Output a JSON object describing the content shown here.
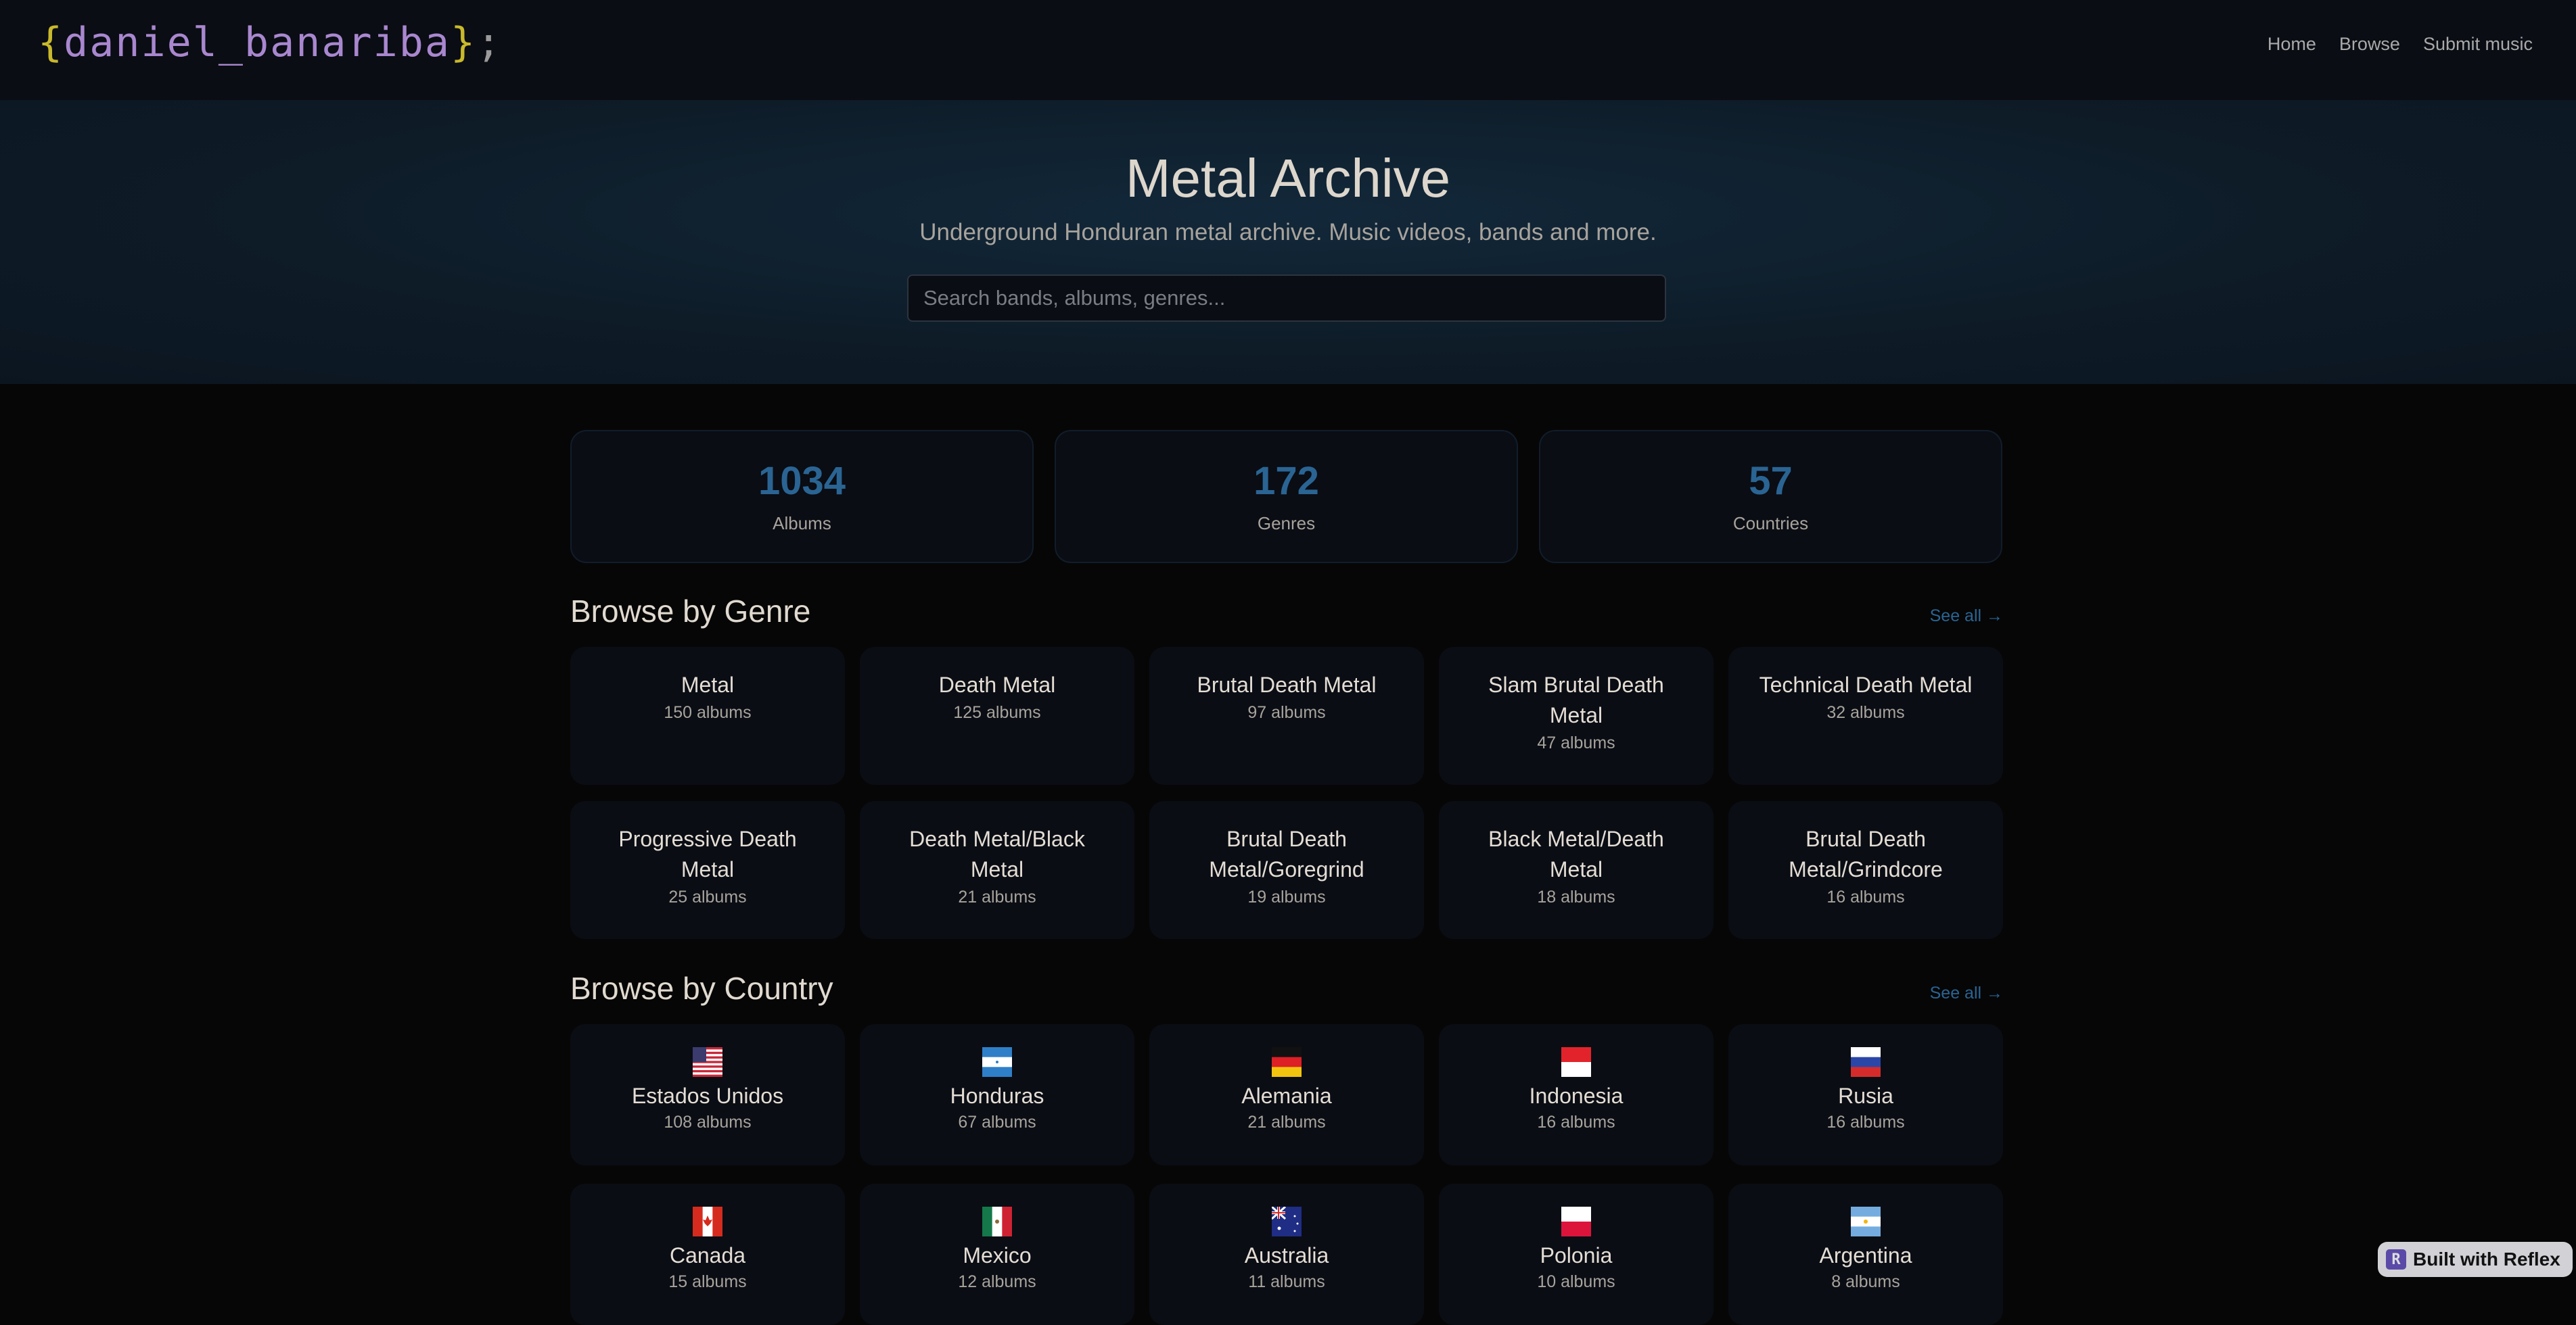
{
  "logo": {
    "open": "{",
    "name": "daniel_banariba",
    "close": "}",
    "semicolon": ";"
  },
  "nav": {
    "items": [
      "Home",
      "Browse",
      "Submit music"
    ]
  },
  "hero": {
    "title": "Metal Archive",
    "subtitle": "Underground Honduran metal archive. Music videos, bands and more.",
    "search_placeholder": "Search bands, albums, genres...",
    "search_value": ""
  },
  "stats": [
    {
      "value": "1034",
      "label": "Albums"
    },
    {
      "value": "172",
      "label": "Genres"
    },
    {
      "value": "57",
      "label": "Countries"
    }
  ],
  "genres": {
    "heading": "Browse by Genre",
    "see_all": "See all →",
    "items": [
      {
        "name": "Metal",
        "count": "150 albums"
      },
      {
        "name": "Death Metal",
        "count": "125 albums"
      },
      {
        "name": "Brutal Death Metal",
        "count": "97 albums"
      },
      {
        "name": "Slam Brutal Death Metal",
        "count": "47 albums"
      },
      {
        "name": "Technical Death Metal",
        "count": "32 albums"
      },
      {
        "name": "Progressive Death Metal",
        "count": "25 albums"
      },
      {
        "name": "Death Metal/Black Metal",
        "count": "21 albums"
      },
      {
        "name": "Brutal Death Metal/Goregrind",
        "count": "19 albums"
      },
      {
        "name": "Black Metal/Death Metal",
        "count": "18 albums"
      },
      {
        "name": "Brutal Death Metal/Grindcore",
        "count": "16 albums"
      }
    ]
  },
  "countries": {
    "heading": "Browse by Country",
    "see_all": "See all →",
    "items": [
      {
        "flag": "us",
        "name": "Estados Unidos",
        "count": "108 albums"
      },
      {
        "flag": "hn",
        "name": "Honduras",
        "count": "67 albums"
      },
      {
        "flag": "de",
        "name": "Alemania",
        "count": "21 albums"
      },
      {
        "flag": "id",
        "name": "Indonesia",
        "count": "16 albums"
      },
      {
        "flag": "ru",
        "name": "Rusia",
        "count": "16 albums"
      },
      {
        "flag": "ca",
        "name": "Canada",
        "count": "15 albums"
      },
      {
        "flag": "mx",
        "name": "Mexico",
        "count": "12 albums"
      },
      {
        "flag": "au",
        "name": "Australia",
        "count": "11 albums"
      },
      {
        "flag": "pl",
        "name": "Polonia",
        "count": "10 albums"
      },
      {
        "flag": "ar",
        "name": "Argentina",
        "count": "8 albums"
      }
    ]
  },
  "badge": {
    "icon": "R",
    "label": "Built with Reflex"
  },
  "colors": {
    "accent": "#2a6493",
    "logo_brace": "#c9b92c",
    "logo_name": "#a987cf",
    "background": "#060606",
    "card": "#0a0d14"
  }
}
